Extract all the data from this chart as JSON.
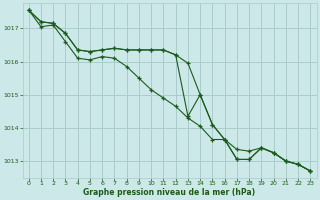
{
  "background_color": "#cce8e8",
  "grid_color": "#aacccc",
  "line_color": "#1a5c1a",
  "xlabel": "Graphe pression niveau de la mer (hPa)",
  "xlabel_color": "#1a5c1a",
  "tick_color": "#1a5c1a",
  "ylim": [
    1012.5,
    1017.75
  ],
  "xlim": [
    -0.5,
    23.5
  ],
  "yticks": [
    1013,
    1014,
    1015,
    1016,
    1017
  ],
  "xticks": [
    0,
    1,
    2,
    3,
    4,
    5,
    6,
    7,
    8,
    9,
    10,
    11,
    12,
    13,
    14,
    15,
    16,
    17,
    18,
    19,
    20,
    21,
    22,
    23
  ],
  "series": [
    [
      1017.55,
      1017.2,
      1017.15,
      1016.85,
      1016.35,
      1016.3,
      1016.35,
      1016.4,
      1016.35,
      1016.35,
      1016.35,
      1016.35,
      1016.2,
      1015.95,
      1015.0,
      1014.1,
      1013.65,
      1013.35,
      1013.3,
      1013.4,
      1013.25,
      1013.0,
      1012.9,
      1012.7
    ],
    [
      1017.55,
      1017.2,
      1017.15,
      1016.85,
      1016.35,
      1016.3,
      1016.35,
      1016.4,
      1016.35,
      1016.35,
      1016.35,
      1016.35,
      1016.2,
      1014.35,
      1015.0,
      1014.1,
      1013.65,
      1013.05,
      1013.05,
      1013.4,
      1013.25,
      1013.0,
      1012.9,
      1012.7
    ],
    [
      1017.55,
      1017.05,
      1017.1,
      1016.6,
      1016.1,
      1016.05,
      1016.15,
      1016.1,
      1015.85,
      1015.5,
      1015.15,
      1014.9,
      1014.65,
      1014.3,
      1014.05,
      1013.65,
      1013.65,
      1013.05,
      1013.05,
      1013.4,
      1013.25,
      1013.0,
      1012.9,
      1012.7
    ]
  ]
}
